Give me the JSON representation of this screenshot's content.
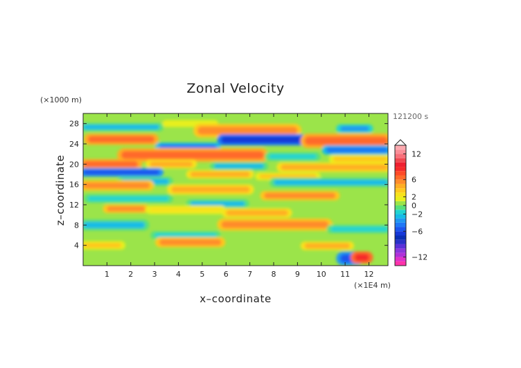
{
  "chart_data": {
    "type": "heatmap",
    "title": "Zonal Velocity",
    "xlabel": "x–coordinate",
    "ylabel": "z–coordinate",
    "x_unit_label": "(×1E4 m)",
    "y_unit_label": "(×1000 m)",
    "time_label": "121200 s",
    "xlim": [
      0,
      12.8
    ],
    "ylim": [
      0,
      30
    ],
    "x_ticks": [
      1,
      2,
      3,
      4,
      5,
      6,
      7,
      8,
      9,
      10,
      11,
      12
    ],
    "y_ticks": [
      4,
      8,
      12,
      16,
      20,
      24,
      28
    ],
    "x_tick_labels": [
      "1",
      "2",
      "3",
      "4",
      "5",
      "6",
      "7",
      "8",
      "9",
      "10",
      "11",
      "12"
    ],
    "y_tick_labels": [
      "4",
      "8",
      "12",
      "16",
      "20",
      "24",
      "28"
    ],
    "colorbar": {
      "levels": [
        -14,
        -13,
        -12,
        -11,
        -10,
        -9,
        -8,
        -7,
        -6,
        -5,
        -4,
        -3,
        -2,
        -1,
        0,
        1,
        2,
        3,
        4,
        5,
        6,
        7,
        8,
        9,
        10,
        11,
        12,
        13,
        14
      ],
      "colors": [
        "#ff33aa",
        "#e030c8",
        "#b030d8",
        "#8a35dc",
        "#5a30d8",
        "#2830c8",
        "#0a2fb4",
        "#1638d8",
        "#1b55ee",
        "#1f78f6",
        "#2097f2",
        "#15bce6",
        "#20d4d0",
        "#58e07a",
        "#9be44a",
        "#e8ef1a",
        "#f8e21a",
        "#ffc81e",
        "#ffae24",
        "#ff8c2a",
        "#ff6a2a",
        "#ff4a28",
        "#f52a2a",
        "#ee2030",
        "#f04850",
        "#f8707a",
        "#fb8f98",
        "#fcaab0"
      ],
      "tick_values": [
        12,
        6,
        2,
        0,
        -2,
        -6,
        -12
      ],
      "tick_labels": [
        "12",
        "6",
        "2",
        "0",
        "−2",
        "−6",
        "−12"
      ]
    },
    "background_level": 0.5,
    "bands": [
      {
        "z": 27.3,
        "x0": 0.0,
        "x1": 3.2,
        "thickness": 1.0,
        "value": -3
      },
      {
        "z": 28.0,
        "x0": 3.5,
        "x1": 5.5,
        "thickness": 0.8,
        "value": 1
      },
      {
        "z": 26.6,
        "x0": 4.8,
        "x1": 9.0,
        "thickness": 1.6,
        "value": 5
      },
      {
        "z": 27.0,
        "x0": 10.8,
        "x1": 12.0,
        "thickness": 1.0,
        "value": -4
      },
      {
        "z": 24.8,
        "x0": 5.8,
        "x1": 9.2,
        "thickness": 1.3,
        "value": -7
      },
      {
        "z": 24.9,
        "x0": 0.2,
        "x1": 3.0,
        "thickness": 1.3,
        "value": 6
      },
      {
        "z": 24.6,
        "x0": 9.3,
        "x1": 12.8,
        "thickness": 1.7,
        "value": 6
      },
      {
        "z": 23.4,
        "x0": 3.2,
        "x1": 5.6,
        "thickness": 1.0,
        "value": -5
      },
      {
        "z": 22.8,
        "x0": 10.2,
        "x1": 12.8,
        "thickness": 1.1,
        "value": -5
      },
      {
        "z": 21.8,
        "x0": 1.6,
        "x1": 7.6,
        "thickness": 1.6,
        "value": 6
      },
      {
        "z": 21.5,
        "x0": 7.8,
        "x1": 9.8,
        "thickness": 1.0,
        "value": -2
      },
      {
        "z": 21.0,
        "x0": 10.5,
        "x1": 12.8,
        "thickness": 1.0,
        "value": 3
      },
      {
        "z": 20.0,
        "x0": 0.0,
        "x1": 2.3,
        "thickness": 1.2,
        "value": 6
      },
      {
        "z": 20.0,
        "x0": 2.8,
        "x1": 4.6,
        "thickness": 1.0,
        "value": 4
      },
      {
        "z": 19.6,
        "x0": 5.5,
        "x1": 7.6,
        "thickness": 1.0,
        "value": -3
      },
      {
        "z": 19.4,
        "x0": 8.3,
        "x1": 12.8,
        "thickness": 1.1,
        "value": 4
      },
      {
        "z": 18.4,
        "x0": 0.0,
        "x1": 3.2,
        "thickness": 1.0,
        "value": -6
      },
      {
        "z": 18.0,
        "x0": 4.5,
        "x1": 7.0,
        "thickness": 1.0,
        "value": 4
      },
      {
        "z": 17.6,
        "x0": 7.4,
        "x1": 9.8,
        "thickness": 0.9,
        "value": 3
      },
      {
        "z": 16.6,
        "x0": 1.6,
        "x1": 3.6,
        "thickness": 1.1,
        "value": -3
      },
      {
        "z": 16.4,
        "x0": 8.0,
        "x1": 12.8,
        "thickness": 1.1,
        "value": -3
      },
      {
        "z": 15.8,
        "x0": 0.0,
        "x1": 2.8,
        "thickness": 1.2,
        "value": 5
      },
      {
        "z": 15.0,
        "x0": 3.7,
        "x1": 7.0,
        "thickness": 1.2,
        "value": 4
      },
      {
        "z": 13.8,
        "x0": 7.6,
        "x1": 10.6,
        "thickness": 1.1,
        "value": 5
      },
      {
        "z": 13.2,
        "x0": 0.2,
        "x1": 3.6,
        "thickness": 1.0,
        "value": -2
      },
      {
        "z": 12.2,
        "x0": 4.5,
        "x1": 6.8,
        "thickness": 1.0,
        "value": -3
      },
      {
        "z": 11.2,
        "x0": 1.0,
        "x1": 2.6,
        "thickness": 1.0,
        "value": 5
      },
      {
        "z": 11.0,
        "x0": 2.8,
        "x1": 5.8,
        "thickness": 1.0,
        "value": 2
      },
      {
        "z": 10.4,
        "x0": 6.0,
        "x1": 8.6,
        "thickness": 1.1,
        "value": 4
      },
      {
        "z": 8.0,
        "x0": 0.0,
        "x1": 2.6,
        "thickness": 1.3,
        "value": -3
      },
      {
        "z": 8.1,
        "x0": 5.8,
        "x1": 10.3,
        "thickness": 1.4,
        "value": 5
      },
      {
        "z": 7.2,
        "x0": 10.4,
        "x1": 12.8,
        "thickness": 1.0,
        "value": -2
      },
      {
        "z": 6.0,
        "x0": 3.0,
        "x1": 5.6,
        "thickness": 0.9,
        "value": -2
      },
      {
        "z": 4.6,
        "x0": 3.2,
        "x1": 5.8,
        "thickness": 1.2,
        "value": 5
      },
      {
        "z": 4.0,
        "x0": 0.0,
        "x1": 1.6,
        "thickness": 1.0,
        "value": 3
      },
      {
        "z": 3.9,
        "x0": 9.3,
        "x1": 11.2,
        "thickness": 1.0,
        "value": 4
      },
      {
        "z": 1.4,
        "x0": 10.8,
        "x1": 11.6,
        "thickness": 1.6,
        "value": -6
      },
      {
        "z": 1.6,
        "x0": 11.4,
        "x1": 12.0,
        "thickness": 1.4,
        "value": 8
      }
    ]
  }
}
